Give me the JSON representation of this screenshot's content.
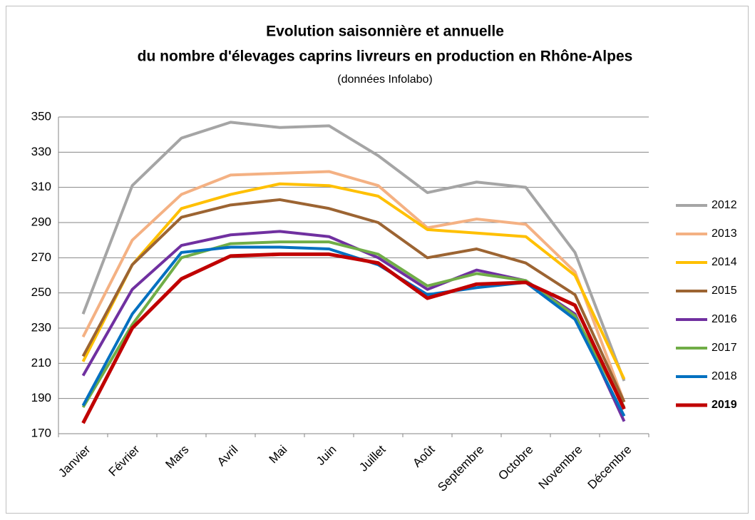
{
  "chart_data": {
    "type": "line",
    "title": [
      "Evolution saisonnière et annuelle",
      "du nombre d'élevages caprins livreurs en production en Rhône-Alpes"
    ],
    "subtitle": "(données Infolabo)",
    "categories": [
      "Janvier",
      "Février",
      "Mars",
      "Avril",
      "Mai",
      "Juin",
      "Juillet",
      "Août",
      "Septembre",
      "Octobre",
      "Novembre",
      "Décembre"
    ],
    "series": [
      {
        "name": "2012",
        "color": "#a5a5a5",
        "values": [
          238,
          311,
          338,
          347,
          344,
          345,
          328,
          307,
          313,
          310,
          273,
          200
        ]
      },
      {
        "name": "2013",
        "color": "#f4b183",
        "values": [
          225,
          280,
          306,
          317,
          318,
          319,
          311,
          287,
          292,
          289,
          262,
          188
        ]
      },
      {
        "name": "2014",
        "color": "#ffc000",
        "values": [
          211,
          266,
          298,
          306,
          312,
          311,
          305,
          286,
          284,
          282,
          260,
          201
        ]
      },
      {
        "name": "2015",
        "color": "#9c6432",
        "values": [
          214,
          266,
          293,
          300,
          303,
          298,
          290,
          270,
          275,
          267,
          249,
          188
        ]
      },
      {
        "name": "2016",
        "color": "#7030a0",
        "values": [
          203,
          252,
          277,
          283,
          285,
          282,
          270,
          252,
          263,
          257,
          238,
          177
        ]
      },
      {
        "name": "2017",
        "color": "#70ad47",
        "values": [
          185,
          232,
          270,
          278,
          279,
          279,
          272,
          254,
          261,
          257,
          237,
          185
        ]
      },
      {
        "name": "2018",
        "color": "#0070c0",
        "values": [
          186,
          238,
          273,
          276,
          276,
          275,
          266,
          249,
          253,
          256,
          235,
          180
        ]
      },
      {
        "name": "2019",
        "color": "#c00000",
        "bold": true,
        "values": [
          176,
          230,
          258,
          271,
          272,
          272,
          267,
          247,
          255,
          256,
          243,
          184
        ]
      }
    ],
    "ylim": [
      170,
      350
    ],
    "yticks": [
      170,
      190,
      210,
      230,
      250,
      270,
      290,
      310,
      330,
      350
    ],
    "grid": true,
    "legend": "right"
  }
}
